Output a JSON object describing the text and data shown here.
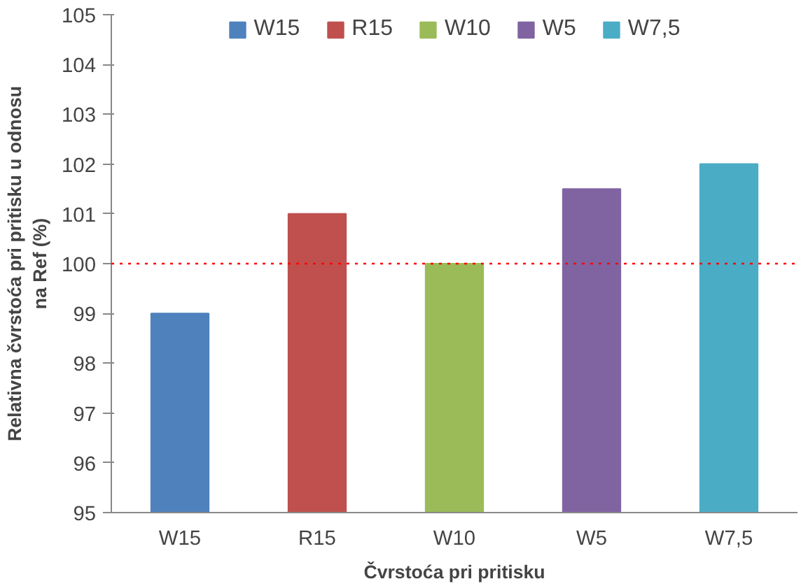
{
  "chart_data": {
    "type": "bar",
    "xlabel": "Čvrstoća pri pritisku",
    "ylabel": "Relativna čvrstoća pri pritisku u odnosu\nna Ref (%)",
    "categories": [
      "W15",
      "R15",
      "W10",
      "W5",
      "W7,5"
    ],
    "series": [
      {
        "name": "W15",
        "color": "#4f81bd",
        "values": [
          99,
          null,
          null,
          null,
          null
        ]
      },
      {
        "name": "R15",
        "color": "#c0504d",
        "values": [
          null,
          101,
          null,
          null,
          null
        ]
      },
      {
        "name": "W10",
        "color": "#9bbb59",
        "values": [
          null,
          null,
          100,
          null,
          null
        ]
      },
      {
        "name": "W5",
        "color": "#8064a2",
        "values": [
          null,
          null,
          null,
          101.5,
          null
        ]
      },
      {
        "name": "W7,5",
        "color": "#4bacc6",
        "values": [
          null,
          null,
          null,
          null,
          102
        ]
      }
    ],
    "ylim": [
      95,
      105
    ],
    "yticks": [
      95,
      96,
      97,
      98,
      99,
      100,
      101,
      102,
      103,
      104,
      105
    ],
    "ref_lines": [
      {
        "axis": "y",
        "value": 100,
        "color": "#ff0000",
        "line_style": "dotted"
      }
    ],
    "grid": false,
    "legend": "top"
  }
}
